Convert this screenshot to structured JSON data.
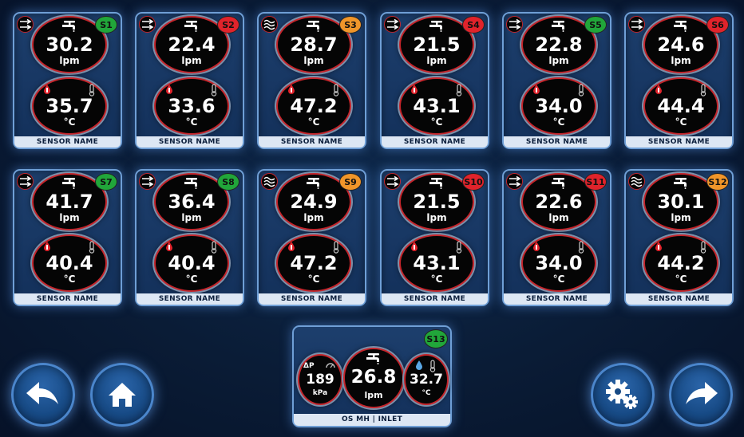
{
  "sensor_cards": [
    {
      "id": "S1",
      "flow": "30.2",
      "temp": "35.7",
      "status": "green",
      "mode": "arrows",
      "name": "SENSOR NAME"
    },
    {
      "id": "S2",
      "flow": "22.4",
      "temp": "33.6",
      "status": "red",
      "mode": "arrows",
      "name": "SENSOR NAME"
    },
    {
      "id": "S3",
      "flow": "28.7",
      "temp": "47.2",
      "status": "orange",
      "mode": "waves",
      "name": "SENSOR NAME"
    },
    {
      "id": "S4",
      "flow": "21.5",
      "temp": "43.1",
      "status": "red",
      "mode": "arrows",
      "name": "SENSOR NAME"
    },
    {
      "id": "S5",
      "flow": "22.8",
      "temp": "34.0",
      "status": "green",
      "mode": "arrows",
      "name": "SENSOR NAME"
    },
    {
      "id": "S6",
      "flow": "24.6",
      "temp": "44.4",
      "status": "red",
      "mode": "arrows",
      "name": "SENSOR NAME"
    },
    {
      "id": "S7",
      "flow": "41.7",
      "temp": "40.4",
      "status": "green",
      "mode": "arrows",
      "name": "SENSOR NAME"
    },
    {
      "id": "S8",
      "flow": "36.4",
      "temp": "40.4",
      "status": "green",
      "mode": "arrows",
      "name": "SENSOR NAME"
    },
    {
      "id": "S9",
      "flow": "24.9",
      "temp": "47.2",
      "status": "orange",
      "mode": "waves",
      "name": "SENSOR NAME"
    },
    {
      "id": "S10",
      "flow": "21.5",
      "temp": "43.1",
      "status": "red",
      "mode": "arrows",
      "name": "SENSOR NAME"
    },
    {
      "id": "S11",
      "flow": "22.6",
      "temp": "34.0",
      "status": "red",
      "mode": "arrows",
      "name": "SENSOR NAME"
    },
    {
      "id": "S12",
      "flow": "30.1",
      "temp": "44.2",
      "status": "orange",
      "mode": "waves",
      "name": "SENSOR NAME"
    }
  ],
  "units": {
    "flow": "lpm",
    "temp": "°C",
    "pressure": "kPa"
  },
  "inlet": {
    "id": "S13",
    "status": "green",
    "name": "OS MH | INLET",
    "pressure": "189",
    "pressure_symbol": "ΔP",
    "flow": "26.8",
    "temp": "32.7"
  },
  "colors": {
    "green": "#21a63a",
    "red": "#e0232b",
    "orange": "#f0962a",
    "accent": "#6f9fd6",
    "background": "#0a1c36"
  },
  "icons": {
    "flow": "tap-icon",
    "temp": "thermometer-icon",
    "mode_arrows": "flow-arrows-icon",
    "mode_waves": "heat-waves-icon",
    "back": "back-arrow-icon",
    "home": "home-icon",
    "settings": "settings-gears-icon",
    "forward": "forward-arrow-icon"
  }
}
